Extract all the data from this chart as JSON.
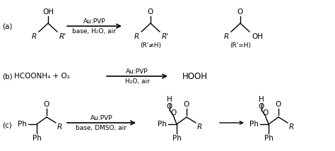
{
  "bg_color": "#ffffff",
  "fig_width": 4.74,
  "fig_height": 2.14,
  "dpi": 100,
  "fs": 7.5,
  "fs_small": 6.5,
  "label_a": "(a)",
  "label_b": "(b)",
  "label_c": "(c)",
  "arrow_a_top": "Au:PVP",
  "arrow_a_bot": "base, H₂O, air",
  "note1": "(R'≠H)",
  "note2": "(R'=H)",
  "reactant_b": "HCOONH₄ + O₂",
  "arrow_b_top": "Au:PVP",
  "arrow_b_bot": "H₂O, air",
  "product_b": "HOOH",
  "arrow_c_top": "Au:PVP",
  "arrow_c_bot": "base, DMSO, air"
}
